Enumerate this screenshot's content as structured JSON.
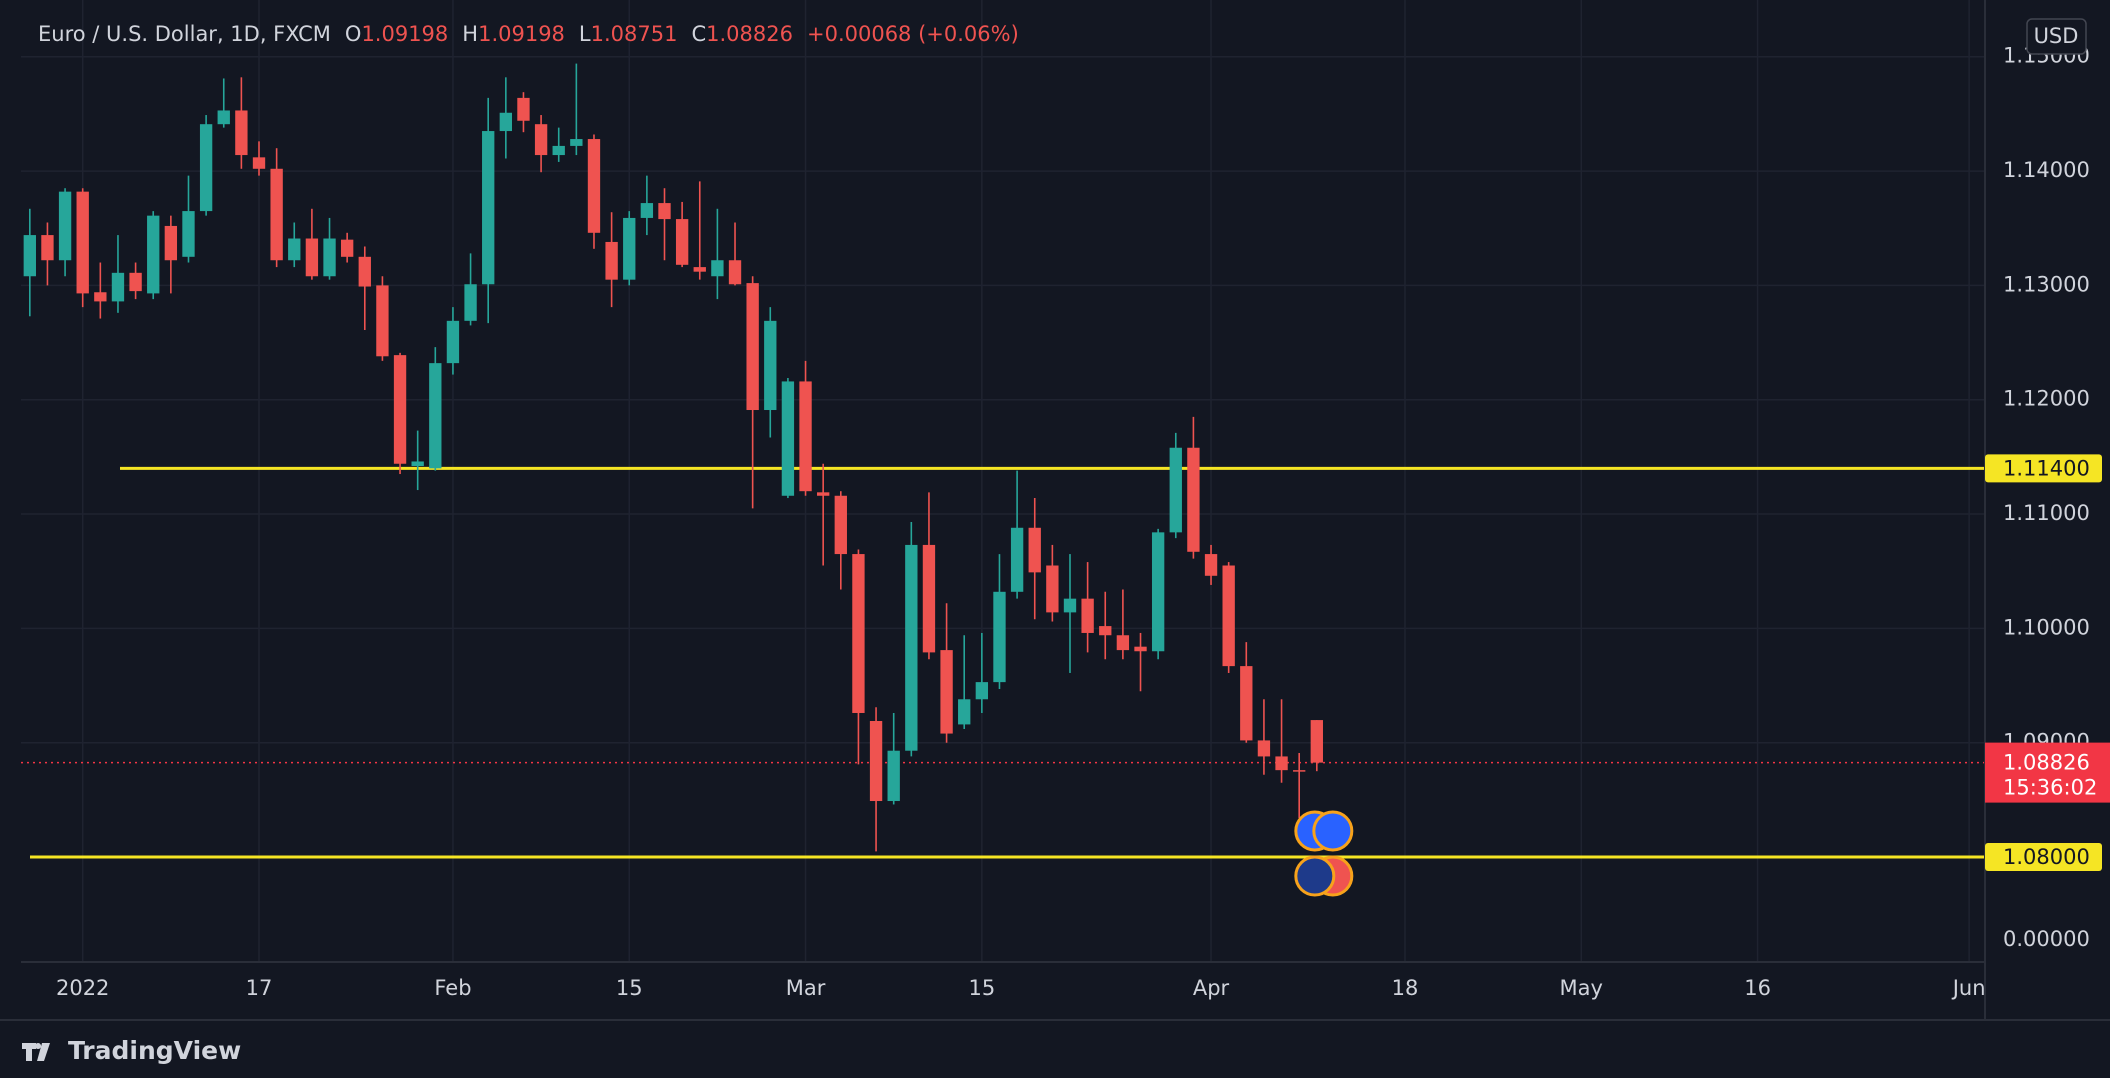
{
  "chart_data": {
    "type": "candlestick",
    "title": "Euro / U.S. Dollar, 1D, FXCM",
    "ohlc_labels": [
      "O",
      "H",
      "L",
      "C"
    ],
    "change": "+0.00068 (+0.06%)",
    "currency": "USD",
    "brand": "TradingView",
    "up_color": "#26a69a",
    "down_color": "#ef5350",
    "open": [
      1.1308,
      1.1344,
      1.1322,
      1.1382,
      1.1294,
      1.1286,
      1.1311,
      1.1293,
      1.1352,
      1.1325,
      1.1365,
      1.1441,
      1.1453,
      1.1412,
      1.1402,
      1.1322,
      1.1341,
      1.1308,
      1.134,
      1.1325,
      1.13,
      1.1239,
      1.1142,
      1.114,
      1.1232,
      1.1269,
      1.1301,
      1.1435,
      1.1464,
      1.1441,
      1.1414,
      1.1422,
      1.1428,
      1.1338,
      1.1305,
      1.1359,
      1.1372,
      1.1358,
      1.1316,
      1.1308,
      1.1322,
      1.1302,
      1.1191,
      1.1116,
      1.1216,
      1.1119,
      1.1116,
      1.1065,
      1.0919,
      1.0849,
      1.0893,
      1.1073,
      1.0981,
      1.0916,
      1.0938,
      1.0953,
      1.1032,
      1.1088,
      1.1055,
      1.1014,
      1.1026,
      1.1002,
      1.0994,
      1.0984,
      1.098,
      1.1084,
      1.1158,
      1.1065,
      1.1055,
      1.0967,
      1.0902,
      1.0888,
      1.0876,
      1.09198
    ],
    "high": [
      1.1367,
      1.1355,
      1.1385,
      1.1385,
      1.132,
      1.1344,
      1.132,
      1.1365,
      1.1361,
      1.1396,
      1.1449,
      1.1481,
      1.1482,
      1.1426,
      1.142,
      1.1355,
      1.1367,
      1.1359,
      1.1346,
      1.1334,
      1.1308,
      1.1241,
      1.1173,
      1.1246,
      1.1281,
      1.1328,
      1.1464,
      1.1482,
      1.1469,
      1.1449,
      1.1438,
      1.1494,
      1.1432,
      1.1364,
      1.1365,
      1.1396,
      1.1385,
      1.1373,
      1.1391,
      1.1367,
      1.1355,
      1.1308,
      1.1281,
      1.1219,
      1.1234,
      1.1144,
      1.112,
      1.1069,
      1.0931,
      1.0926,
      1.1093,
      1.1119,
      1.1022,
      1.0994,
      1.0996,
      1.1065,
      1.1138,
      1.1114,
      1.1073,
      1.1065,
      1.1058,
      1.1032,
      1.1034,
      1.0996,
      1.1087,
      1.1171,
      1.1185,
      1.1073,
      1.1058,
      1.0988,
      1.0938,
      1.0938,
      1.0891,
      1.09198
    ],
    "low": [
      1.1273,
      1.13,
      1.1308,
      1.1281,
      1.1271,
      1.1276,
      1.1288,
      1.1288,
      1.1293,
      1.132,
      1.1361,
      1.1438,
      1.1402,
      1.1396,
      1.1316,
      1.1316,
      1.1305,
      1.1305,
      1.132,
      1.1261,
      1.1234,
      1.1135,
      1.1121,
      1.1138,
      1.1222,
      1.1265,
      1.1267,
      1.1411,
      1.1434,
      1.1399,
      1.1408,
      1.1414,
      1.1332,
      1.1281,
      1.13,
      1.1344,
      1.1322,
      1.1316,
      1.1305,
      1.1288,
      1.13,
      1.1105,
      1.1167,
      1.1114,
      1.1116,
      1.1055,
      1.1034,
      1.0881,
      1.0805,
      1.0846,
      1.0888,
      1.0973,
      1.09,
      1.0912,
      1.0926,
      1.0947,
      1.1026,
      1.1008,
      1.1006,
      1.0961,
      1.0979,
      1.0973,
      1.0973,
      1.0945,
      1.0973,
      1.1079,
      1.1061,
      1.1038,
      1.0961,
      1.09,
      1.0872,
      1.0865,
      1.0834,
      1.08751
    ],
    "close": [
      1.1344,
      1.1322,
      1.1382,
      1.1293,
      1.1286,
      1.1311,
      1.1295,
      1.1361,
      1.1322,
      1.1365,
      1.1441,
      1.1453,
      1.1414,
      1.1402,
      1.1322,
      1.1341,
      1.1308,
      1.1341,
      1.1325,
      1.1299,
      1.1238,
      1.1144,
      1.1146,
      1.1232,
      1.1269,
      1.1301,
      1.1435,
      1.1451,
      1.1444,
      1.1414,
      1.1422,
      1.1428,
      1.1346,
      1.1305,
      1.1359,
      1.1372,
      1.1358,
      1.1318,
      1.1312,
      1.1322,
      1.1301,
      1.1191,
      1.1269,
      1.1216,
      1.112,
      1.1116,
      1.1065,
      1.0926,
      1.0849,
      1.0893,
      1.1073,
      1.0979,
      1.0908,
      1.0938,
      1.0953,
      1.1032,
      1.1088,
      1.1049,
      1.1014,
      1.1026,
      1.0996,
      1.0994,
      1.0981,
      1.098,
      1.1084,
      1.1158,
      1.1067,
      1.1046,
      1.0967,
      1.0902,
      1.0888,
      1.0876,
      1.08758,
      1.08826
    ],
    "xlim": [
      -0.5,
      110.9
    ],
    "ylim": [
      1.07082,
      1.15435
    ],
    "yticks": [
      {
        "value": 1.15,
        "label": "1.15000"
      },
      {
        "value": 1.14,
        "label": "1.14000"
      },
      {
        "value": 1.13,
        "label": "1.13000"
      },
      {
        "value": 1.12,
        "label": "1.12000"
      },
      {
        "value": 1.11,
        "label": "1.11000"
      },
      {
        "value": 1.1,
        "label": "1.10000"
      },
      {
        "value": 1.09,
        "label": "1.09000"
      }
    ],
    "axis_extra_label": "0.00000",
    "xticks": [
      {
        "value": 3,
        "label": "2022"
      },
      {
        "value": 13,
        "label": "17"
      },
      {
        "value": 24,
        "label": "Feb"
      },
      {
        "value": 34,
        "label": "15"
      },
      {
        "value": 44,
        "label": "Mar"
      },
      {
        "value": 54,
        "label": "15"
      },
      {
        "value": 67,
        "label": "Apr"
      },
      {
        "value": 78,
        "label": "18"
      },
      {
        "value": 88,
        "label": "May"
      },
      {
        "value": 98,
        "label": "16"
      },
      {
        "value": 110,
        "label": "Jun"
      }
    ],
    "grid": true,
    "levels": [
      {
        "value": 1.114,
        "label": "1.11400",
        "color": "#f5e524"
      },
      {
        "value": 1.08,
        "label": "1.08000",
        "color": "#f5e524"
      }
    ],
    "last_price": {
      "value": 1.08826,
      "label": "1.08826",
      "countdown": "15:36:02",
      "color": "#f23645"
    }
  }
}
